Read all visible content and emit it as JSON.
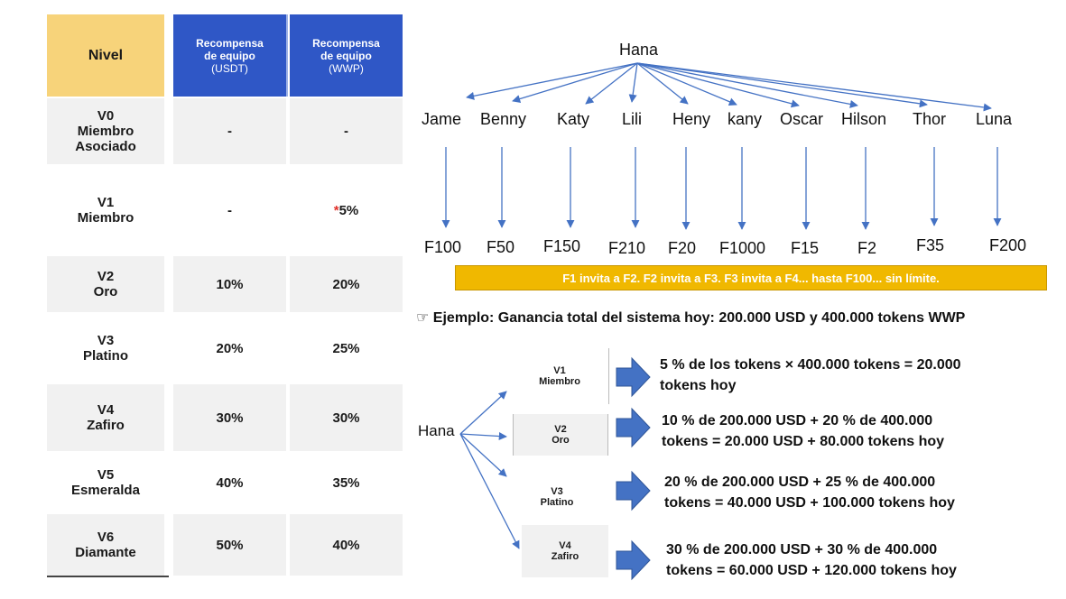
{
  "table": {
    "header": {
      "nivel": "Nivel",
      "usdt": [
        "Recompensa",
        "de equipo",
        "(USDT)"
      ],
      "wwp": [
        "Recompensa",
        "de equipo",
        "(WWP)"
      ]
    },
    "rows": [
      {
        "level": "V0",
        "names": [
          "Miembro",
          "Asociado"
        ],
        "usdt": "-",
        "wwp": "-"
      },
      {
        "level": "V1",
        "names": [
          "Miembro"
        ],
        "usdt": "-",
        "wwp_mark": "*",
        "wwp": "5%"
      },
      {
        "level": "V2",
        "names": [
          "Oro"
        ],
        "usdt": "10%",
        "wwp": "20%"
      },
      {
        "level": "V3",
        "names": [
          "Platino"
        ],
        "usdt": "20%",
        "wwp": "25%"
      },
      {
        "level": "V4",
        "names": [
          "Zafiro"
        ],
        "usdt": "30%",
        "wwp": "30%"
      },
      {
        "level": "V5",
        "names": [
          "Esmeralda"
        ],
        "usdt": "40%",
        "wwp": "35%"
      },
      {
        "level": "V6",
        "names": [
          "Diamante"
        ],
        "usdt": "50%",
        "wwp": "40%"
      }
    ]
  },
  "tree": {
    "root": "Hana",
    "members": [
      "Jame",
      "Benny",
      "Katy",
      "Lili",
      "Heny",
      "kany",
      "Oscar",
      "Hilson",
      "Thor",
      "Luna"
    ],
    "levels": [
      "F100",
      "F50",
      "F150",
      "F210",
      "F20",
      "F1000",
      "F15",
      "F2",
      "F35",
      "F200"
    ],
    "banner": "F1 invita a F2. F2 invita a F3. F3 invita a F4... hasta F100... sin límite."
  },
  "example": {
    "icon": "pointing-hand-icon",
    "icon_glyph": "☞",
    "title": "Ejemplo: Ganancia total del sistema hoy: 200.000 USD y 400.000 tokens WWP",
    "root": "Hana",
    "cards": [
      {
        "level": "V1",
        "name": "Miembro",
        "lines": [
          "5 % de los tokens × 400.000 tokens = 20.000",
          "tokens hoy"
        ]
      },
      {
        "level": "V2",
        "name": "Oro",
        "lines": [
          "10 % de 200.000 USD + 20 % de 400.000",
          "tokens = 20.000 USD + 80.000 tokens hoy"
        ]
      },
      {
        "level": "V3",
        "name": "Platino",
        "lines": [
          "20 % de 200.000 USD + 25 % de 400.000",
          "tokens = 40.000 USD + 100.000 tokens hoy"
        ]
      },
      {
        "level": "V4",
        "name": "Zafiro",
        "lines": [
          "30 % de 200.000 USD + 30 % de 400.000",
          "tokens = 60.000 USD + 120.000 tokens hoy"
        ]
      }
    ]
  },
  "colors": {
    "header_gold": "#f7d37a",
    "header_blue": "#2f57c6",
    "row_gray": "#f1f1f1",
    "arrow_blue": "#4472c4",
    "banner": "#f0b800",
    "red_mark": "#e0312a"
  }
}
